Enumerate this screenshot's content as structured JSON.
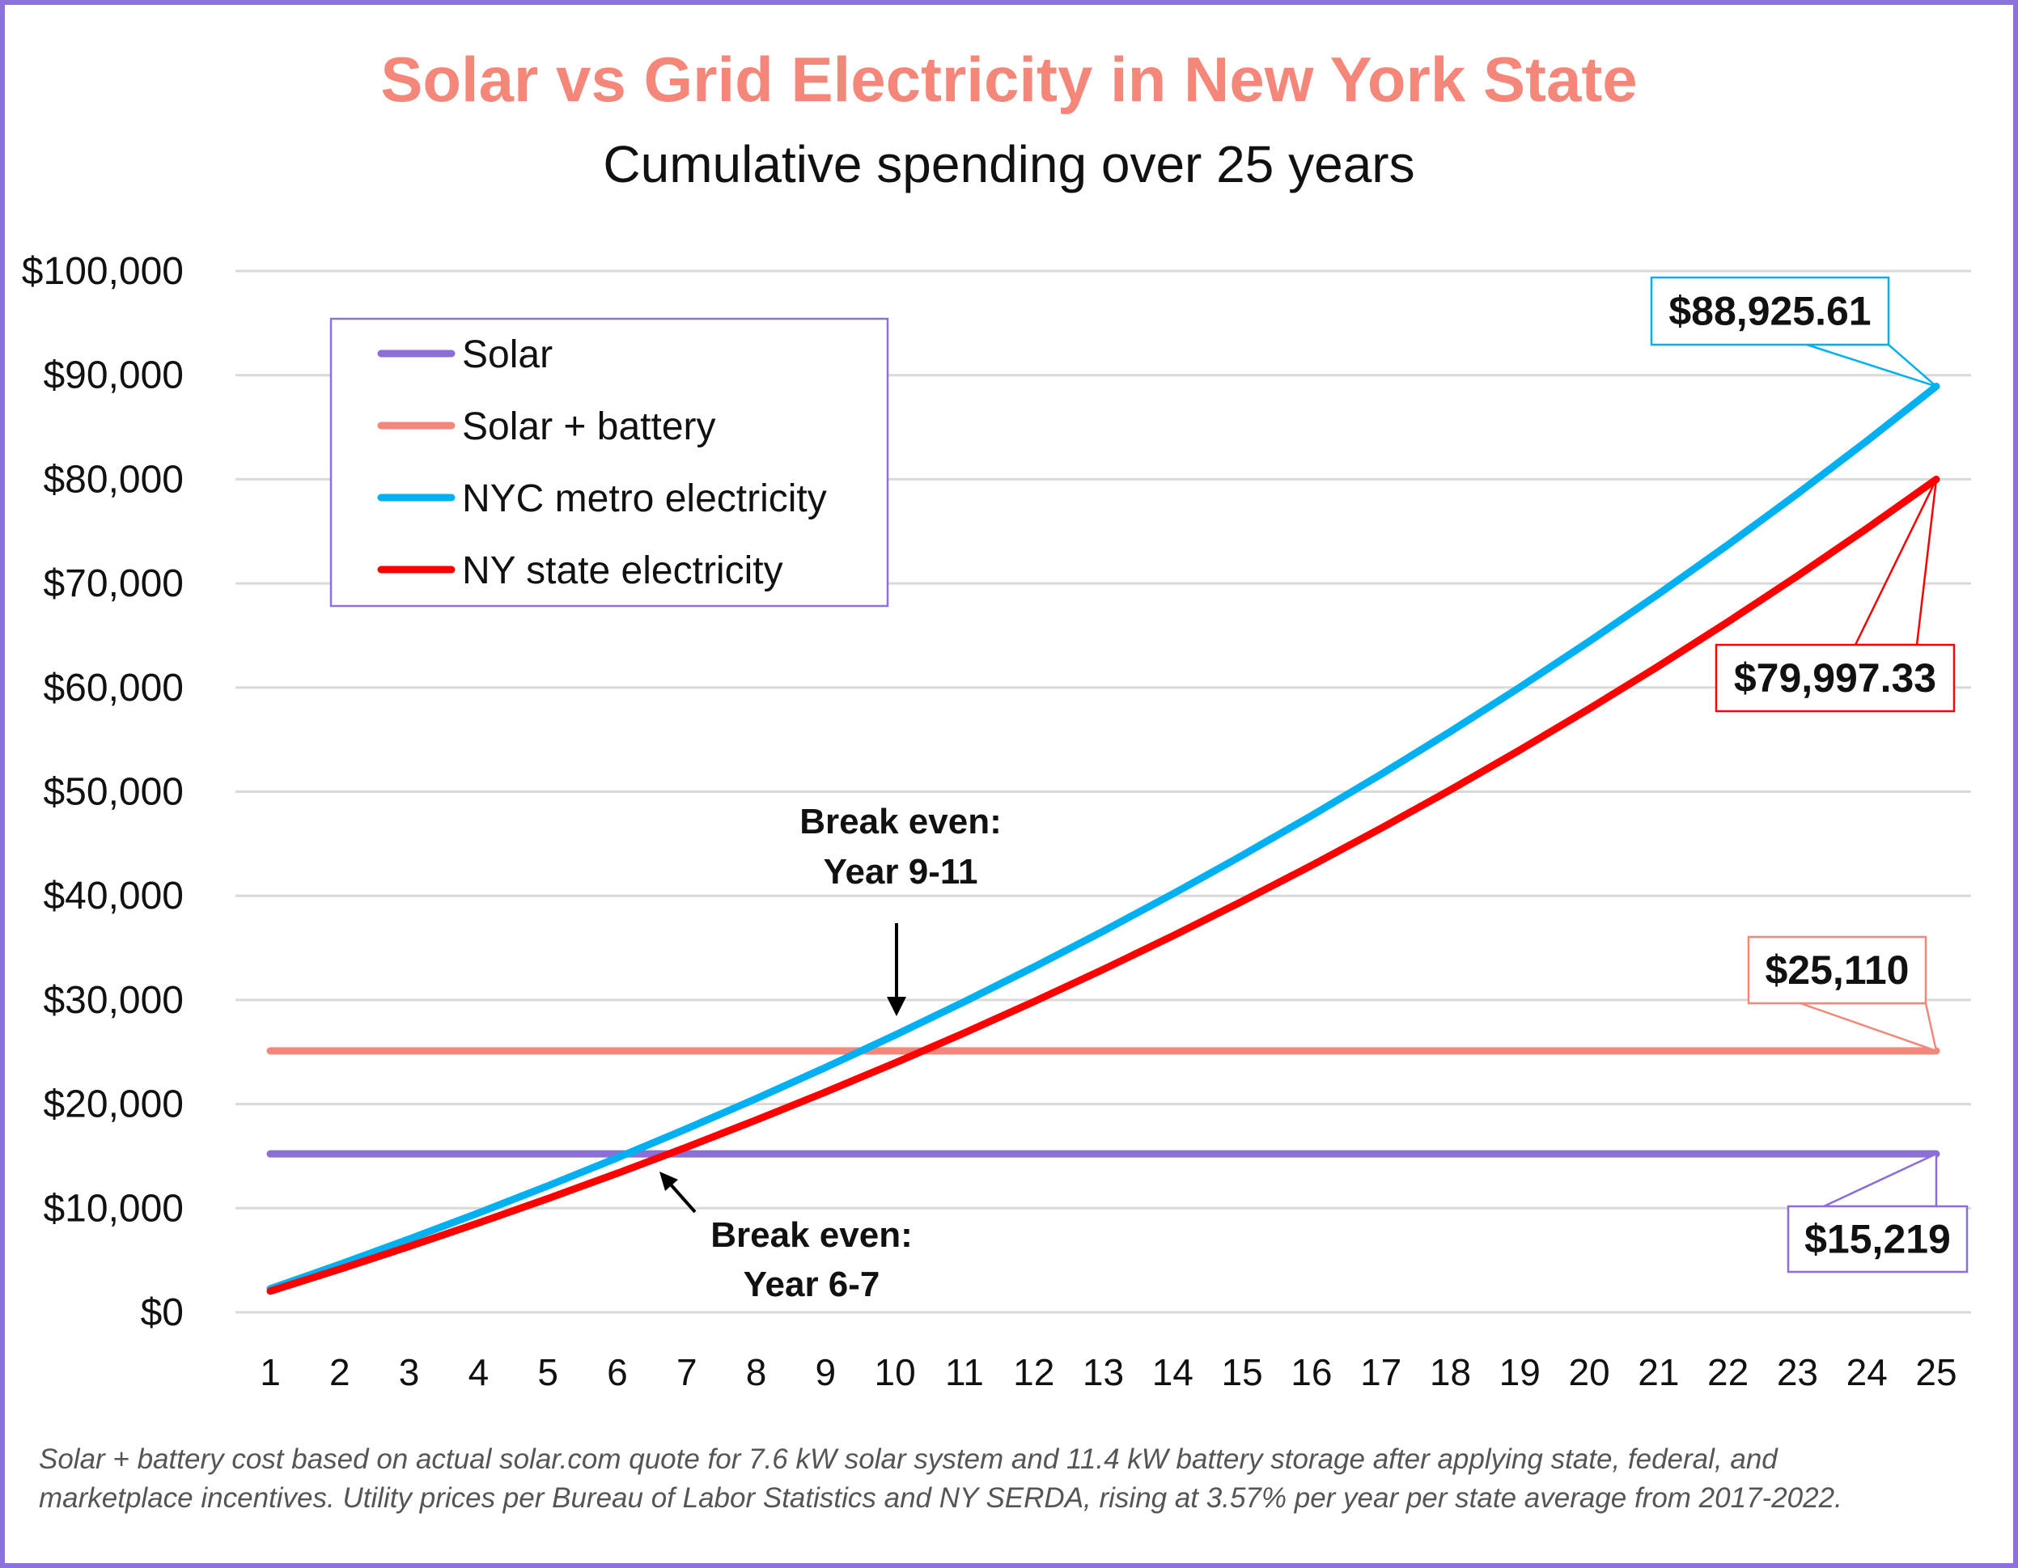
{
  "chart_data": {
    "type": "line",
    "title": "Solar vs Grid Electricity in New York State",
    "subtitle": "Cumulative spending over 25 years",
    "xlabel": "",
    "ylabel": "",
    "x": [
      1,
      2,
      3,
      4,
      5,
      6,
      7,
      8,
      9,
      10,
      11,
      12,
      13,
      14,
      15,
      16,
      17,
      18,
      19,
      20,
      21,
      22,
      23,
      24,
      25
    ],
    "ylim": [
      0,
      100000
    ],
    "yticks": [
      "$0",
      "$10,000",
      "$20,000",
      "$30,000",
      "$40,000",
      "$50,000",
      "$60,000",
      "$70,000",
      "$80,000",
      "$90,000",
      "$100,000"
    ],
    "grid": true,
    "legend_placement": "top-left",
    "series": [
      {
        "name": "Solar",
        "color": "#8B6FD6",
        "values": [
          15219,
          15219,
          15219,
          15219,
          15219,
          15219,
          15219,
          15219,
          15219,
          15219,
          15219,
          15219,
          15219,
          15219,
          15219,
          15219,
          15219,
          15219,
          15219,
          15219,
          15219,
          15219,
          15219,
          15219,
          15219
        ],
        "end_label": "$15,219"
      },
      {
        "name": "Solar + battery",
        "color": "#F4877A",
        "values": [
          25110,
          25110,
          25110,
          25110,
          25110,
          25110,
          25110,
          25110,
          25110,
          25110,
          25110,
          25110,
          25110,
          25110,
          25110,
          25110,
          25110,
          25110,
          25110,
          25110,
          25110,
          25110,
          25110,
          25110,
          25110
        ],
        "end_label": "$25,110"
      },
      {
        "name": "NYC metro electricity",
        "color": "#00B0F0",
        "values": [
          2262,
          4605,
          7031,
          9544,
          12147,
          14842,
          17633,
          20525,
          23519,
          26622,
          29834,
          33161,
          36606,
          40175,
          43872,
          47699,
          51663,
          55770,
          60023,
          64428,
          68990,
          73715,
          78609,
          83677,
          88926
        ],
        "end_label": "$88,925.61"
      },
      {
        "name": "NY state electricity",
        "color": "#FF0000",
        "values": [
          2035,
          4142,
          6325,
          8585,
          10927,
          13352,
          15863,
          18464,
          21158,
          23949,
          26838,
          29831,
          32931,
          36142,
          39467,
          42911,
          46477,
          50171,
          53997,
          57960,
          62063,
          66314,
          70716,
          75276,
          79997
        ],
        "end_label": "$79,997.33"
      }
    ],
    "annotations": [
      {
        "line1": "Break even:",
        "line2": "Year 9-11",
        "arrow_x": 10,
        "arrow_y": 26000
      },
      {
        "line1": "Break even:",
        "line2": "Year 6-7",
        "arrow_x": 6.6,
        "arrow_y": 15219
      }
    ],
    "footnote": [
      "Solar + battery cost based on actual solar.com quote for 7.6 kW solar system and 11.4 kW battery storage after applying state, federal, and",
      "marketplace incentives. Utility prices per Bureau of Labor Statistics and NY SERDA, rising at 3.57% per year per state average from 2017-2022."
    ]
  }
}
